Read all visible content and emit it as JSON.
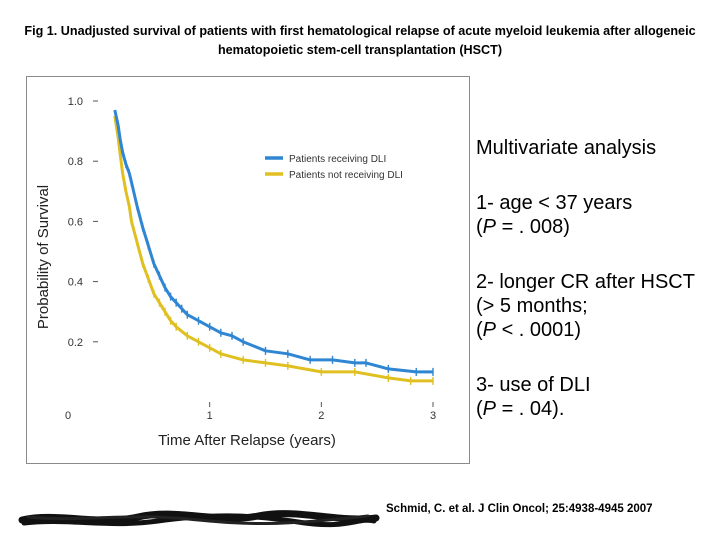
{
  "title": "Fig 1. Unadjusted survival of patients with first hematological relapse of acute myeloid leukemia after allogeneic hematopoietic stem-cell transplantation (HSCT)",
  "analysis": {
    "heading": "Multivariate analysis",
    "items": [
      {
        "line1": "1- age < 37 years",
        "p_prefix": "(",
        "p_italic": "P",
        "p_suffix": " = . 008)"
      },
      {
        "line1": "2- longer CR after HSCT (> 5 months;",
        "p_prefix": "(",
        "p_italic": "P",
        "p_suffix": " < . 0001)"
      },
      {
        "line1": "3- use of DLI",
        "p_prefix": "(",
        "p_italic": "P",
        "p_suffix": " = . 04)."
      }
    ]
  },
  "citation": "Schmid, C. et al. J Clin Oncol; 25:4938-4945 2007",
  "colors": {
    "dli": "#2f86d3",
    "no_dli": "#e0c020"
  },
  "chart_data": {
    "type": "line",
    "xlabel": "Time After Relapse (years)",
    "ylabel": "Probability of Survival",
    "xlim": [
      0,
      3
    ],
    "ylim": [
      0,
      1.0
    ],
    "x_ticks": [
      "0",
      "1",
      "2",
      "3"
    ],
    "y_ticks": [
      "0.2",
      "0.4",
      "0.6",
      "0.8",
      "1.0"
    ],
    "legend_position": "upper-right",
    "series": [
      {
        "name": "Patients receiving DLI",
        "color": "#2f86d3",
        "x": [
          0.15,
          0.18,
          0.2,
          0.22,
          0.25,
          0.28,
          0.3,
          0.35,
          0.4,
          0.45,
          0.5,
          0.55,
          0.6,
          0.65,
          0.7,
          0.75,
          0.8,
          0.9,
          1.0,
          1.1,
          1.2,
          1.3,
          1.5,
          1.7,
          1.9,
          2.1,
          2.3,
          2.4,
          2.6,
          2.85,
          3.0
        ],
        "y": [
          0.97,
          0.92,
          0.87,
          0.83,
          0.79,
          0.76,
          0.73,
          0.65,
          0.58,
          0.52,
          0.46,
          0.42,
          0.38,
          0.35,
          0.33,
          0.31,
          0.29,
          0.27,
          0.25,
          0.23,
          0.22,
          0.2,
          0.17,
          0.16,
          0.14,
          0.14,
          0.13,
          0.13,
          0.11,
          0.1,
          0.1
        ]
      },
      {
        "name": "Patients not receiving DLI",
        "color": "#e0c020",
        "x": [
          0.15,
          0.18,
          0.2,
          0.22,
          0.25,
          0.28,
          0.3,
          0.35,
          0.4,
          0.45,
          0.5,
          0.55,
          0.6,
          0.65,
          0.7,
          0.8,
          0.9,
          1.0,
          1.1,
          1.3,
          1.5,
          1.7,
          2.0,
          2.3,
          2.6,
          2.8,
          3.0
        ],
        "y": [
          0.95,
          0.88,
          0.82,
          0.76,
          0.7,
          0.65,
          0.6,
          0.53,
          0.46,
          0.41,
          0.36,
          0.33,
          0.3,
          0.27,
          0.25,
          0.22,
          0.2,
          0.18,
          0.16,
          0.14,
          0.13,
          0.12,
          0.1,
          0.1,
          0.08,
          0.07,
          0.07
        ]
      }
    ]
  }
}
